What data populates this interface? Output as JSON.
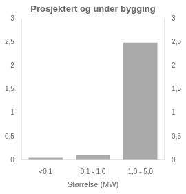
{
  "chart_data": {
    "type": "bar",
    "title": "Prosjektert og under bygging",
    "xlabel": "Størrelse (MW)",
    "categories": [
      "<0,1",
      "0,1 - 1,0",
      "1,0 - 5,0"
    ],
    "values": [
      0.05,
      0.11,
      2.5
    ],
    "color": "#aaaaaa",
    "ylim": [
      0,
      3
    ],
    "yticks": [
      0,
      {
        "value": 0.5,
        "label": "0,5"
      },
      1,
      {
        "value": 1.5,
        "label": "1,5"
      },
      2,
      {
        "value": 2.5,
        "label": "2,5"
      },
      3
    ],
    "y2lim": [
      0,
      3
    ],
    "y2ticks": [
      0,
      {
        "value": 0.5,
        "label": "0,5"
      },
      1,
      {
        "value": 1.5,
        "label": "1,5"
      },
      2,
      {
        "value": 2.5,
        "label": "2,5"
      },
      3
    ],
    "grid": false
  }
}
